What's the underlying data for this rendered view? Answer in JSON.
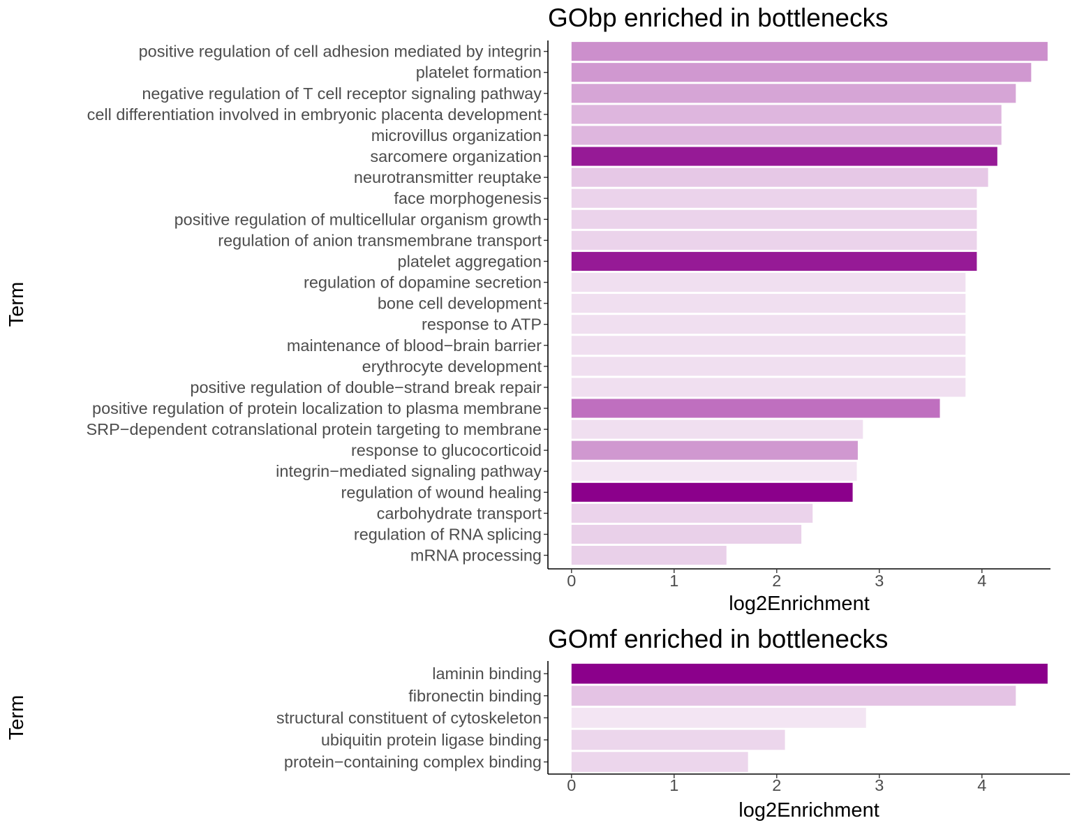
{
  "chart_data": [
    {
      "type": "bar",
      "orientation": "horizontal",
      "title": "GObp enriched in bottlenecks",
      "xlabel": "log2Enrichment",
      "ylabel": "Term",
      "xlim": [
        -0.23,
        4.9
      ],
      "xticks": [
        0,
        1,
        2,
        3,
        4
      ],
      "grid": false,
      "legend": "none",
      "categories": [
        "positive regulation of cell adhesion mediated by integrin",
        "platelet formation",
        "negative regulation of T cell receptor signaling pathway",
        "cell differentiation involved in embryonic placenta development",
        "microvillus organization",
        "sarcomere organization",
        "neurotransmitter reuptake",
        "face morphogenesis",
        "positive regulation of multicellular organism growth",
        "regulation of anion transmembrane transport",
        "platelet aggregation",
        "regulation of dopamine secretion",
        "bone cell development",
        "response to ATP",
        "maintenance of blood−brain barrier",
        "erythrocyte development",
        "positive regulation of double−strand break repair",
        "positive regulation of protein localization to plasma membrane",
        "SRP−dependent cotranslational protein targeting to membrane",
        "response to glucocorticoid",
        "integrin−mediated signaling pathway",
        "regulation of wound healing",
        "carbohydrate transport",
        "regulation of RNA splicing",
        "mRNA processing"
      ],
      "values": [
        4.64,
        4.48,
        4.33,
        4.19,
        4.19,
        4.15,
        4.06,
        3.95,
        3.95,
        3.95,
        3.95,
        3.84,
        3.84,
        3.84,
        3.84,
        3.84,
        3.84,
        3.59,
        2.84,
        2.79,
        2.78,
        2.74,
        2.35,
        2.24,
        1.51
      ],
      "colors": [
        "#cc8fcc",
        "#d098d0",
        "#d6a5d6",
        "#deb6de",
        "#deb6de",
        "#961a96",
        "#e6c8e6",
        "#ebd3eb",
        "#ebd3eb",
        "#ebd3eb",
        "#961a96",
        "#f0dff0",
        "#f0dff0",
        "#f0dff0",
        "#f0dff0",
        "#f0dff0",
        "#f0dff0",
        "#bf6fbf",
        "#f0dff0",
        "#d098d0",
        "#f3e5f3",
        "#8b008b",
        "#ebd3eb",
        "#e9d0e9",
        "#e9d0e9"
      ]
    },
    {
      "type": "bar",
      "orientation": "horizontal",
      "title": "GOmf enriched in bottlenecks",
      "xlabel": "log2Enrichment",
      "ylabel": "Term",
      "xlim": [
        -0.23,
        4.9
      ],
      "xticks": [
        0,
        1,
        2,
        3,
        4
      ],
      "grid": false,
      "legend": "none",
      "categories": [
        "laminin binding",
        "fibronectin binding",
        "structural constituent of cytoskeleton",
        "ubiquitin protein ligase binding",
        "protein−containing complex binding"
      ],
      "values": [
        4.64,
        4.33,
        2.87,
        2.08,
        1.72
      ],
      "colors": [
        "#8b008b",
        "#e4c3e4",
        "#f3e5f3",
        "#ecd6ec",
        "#ecd6ec"
      ]
    }
  ]
}
